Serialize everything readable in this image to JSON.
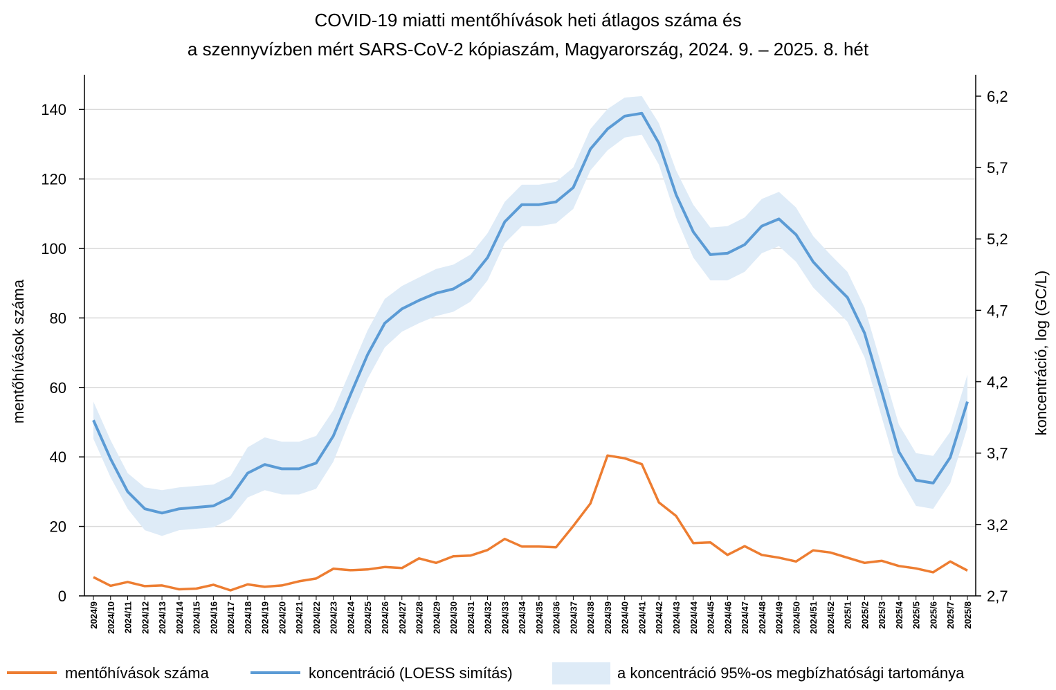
{
  "chart_data": {
    "type": "line",
    "title_lines": [
      "COVID-19 miatti mentőhívások heti átlagos száma és",
      "a szennyvízben mért SARS-CoV-2 kópiaszám, Magyarország, 2024. 9. – 2025. 8. hét"
    ],
    "ylabel_left": "mentőhívások száma",
    "ylabel_right": "koncentráció, log (GC/L)",
    "ylim_left": [
      0,
      150
    ],
    "yticks_left": [
      "0",
      "20",
      "40",
      "60",
      "80",
      "100",
      "120",
      "140"
    ],
    "ylim_right": [
      2.7,
      6.35
    ],
    "yticks_right": [
      "2,7",
      "3,2",
      "3,7",
      "4,2",
      "4,7",
      "5,2",
      "5,7",
      "6,2"
    ],
    "categories": [
      "2024/9",
      "2024/10",
      "2024/11",
      "2024/12",
      "2024/13",
      "2024/14",
      "2024/15",
      "2024/16",
      "2024/17",
      "2024/18",
      "2024/19",
      "2024/20",
      "2024/21",
      "2024/22",
      "2024/23",
      "2024/24",
      "2024/25",
      "2024/26",
      "2024/27",
      "2024/28",
      "2024/29",
      "2024/30",
      "2024/31",
      "2024/32",
      "2024/33",
      "2024/34",
      "2024/35",
      "2024/36",
      "2024/37",
      "2024/38",
      "2024/39",
      "2024/40",
      "2024/41",
      "2024/42",
      "2024/43",
      "2024/44",
      "2024/45",
      "2024/46",
      "2024/47",
      "2024/48",
      "2024/49",
      "2024/50",
      "2024/51",
      "2024/52",
      "2025/1",
      "2025/2",
      "2025/3",
      "2025/4",
      "2025/5",
      "2025/6",
      "2025/7",
      "2025/8"
    ],
    "series": [
      {
        "name": "mentőhívások száma",
        "axis": "left",
        "color": "#ED7D31",
        "values": [
          5.4,
          2.9,
          4.0,
          2.8,
          3.0,
          1.9,
          2.1,
          3.2,
          1.6,
          3.3,
          2.6,
          3.0,
          4.2,
          5.0,
          7.8,
          7.4,
          7.6,
          8.3,
          8.0,
          10.8,
          9.5,
          11.4,
          11.6,
          13.2,
          16.4,
          14.2,
          14.2,
          14.0,
          20.1,
          26.6,
          40.4,
          39.6,
          37.9,
          26.9,
          23.0,
          15.2,
          15.4,
          11.8,
          14.3,
          11.8,
          11.0,
          9.9,
          13.1,
          12.5,
          11.0,
          9.5,
          10.1,
          8.6,
          7.9,
          6.8,
          9.9,
          7.3
        ]
      },
      {
        "name": "koncentráció (LOESS simítás)",
        "axis": "right",
        "color": "#5B9BD5",
        "values": [
          3.93,
          3.66,
          3.43,
          3.31,
          3.28,
          3.31,
          3.32,
          3.33,
          3.39,
          3.56,
          3.62,
          3.59,
          3.59,
          3.63,
          3.82,
          4.11,
          4.39,
          4.61,
          4.71,
          4.77,
          4.82,
          4.85,
          4.92,
          5.07,
          5.32,
          5.44,
          5.44,
          5.46,
          5.56,
          5.83,
          5.97,
          6.06,
          6.08,
          5.87,
          5.51,
          5.25,
          5.09,
          5.1,
          5.16,
          5.29,
          5.34,
          5.23,
          5.04,
          4.91,
          4.79,
          4.54,
          4.13,
          3.71,
          3.51,
          3.49,
          3.67,
          4.06
        ]
      },
      {
        "name": "a koncentráció 95%-os megbízhatósági tartománya",
        "axis": "right",
        "color": "#DEEBF7",
        "upper": [
          4.06,
          3.79,
          3.56,
          3.46,
          3.44,
          3.46,
          3.47,
          3.48,
          3.54,
          3.74,
          3.81,
          3.78,
          3.78,
          3.82,
          4.0,
          4.28,
          4.56,
          4.78,
          4.87,
          4.93,
          4.99,
          5.02,
          5.09,
          5.24,
          5.46,
          5.58,
          5.58,
          5.6,
          5.7,
          5.97,
          6.11,
          6.19,
          6.2,
          6.01,
          5.68,
          5.44,
          5.28,
          5.29,
          5.35,
          5.48,
          5.53,
          5.42,
          5.22,
          5.09,
          4.97,
          4.72,
          4.31,
          3.9,
          3.7,
          3.68,
          3.85,
          4.25
        ],
        "lower": [
          3.8,
          3.53,
          3.31,
          3.16,
          3.12,
          3.16,
          3.17,
          3.18,
          3.24,
          3.39,
          3.44,
          3.41,
          3.41,
          3.45,
          3.64,
          3.94,
          4.22,
          4.44,
          4.55,
          4.61,
          4.66,
          4.69,
          4.76,
          4.91,
          5.17,
          5.29,
          5.29,
          5.31,
          5.41,
          5.68,
          5.82,
          5.91,
          5.93,
          5.72,
          5.35,
          5.07,
          4.91,
          4.91,
          4.97,
          5.1,
          5.15,
          5.04,
          4.86,
          4.74,
          4.62,
          4.37,
          3.95,
          3.54,
          3.33,
          3.31,
          3.49,
          3.88
        ]
      }
    ],
    "grid": "horizontal",
    "legend_placement": "bottom"
  }
}
